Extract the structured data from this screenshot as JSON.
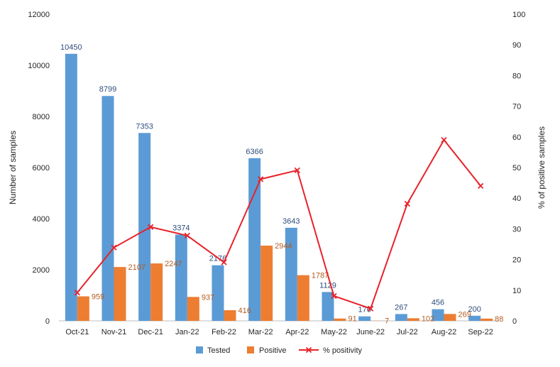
{
  "chart_data": {
    "type": "bar",
    "categories": [
      "Oct-21",
      "Nov-21",
      "Dec-21",
      "Jan-22",
      "Feb-22",
      "Mar-22",
      "Apr-22",
      "May-22",
      "June-22",
      "Jul-22",
      "Aug-22",
      "Sep-22"
    ],
    "series": [
      {
        "name": "Tested",
        "type": "bar",
        "axis": "left",
        "color": "#5b9bd5",
        "values": [
          10450,
          8799,
          7353,
          3374,
          2176,
          6366,
          3643,
          1129,
          176,
          267,
          456,
          200
        ],
        "labels": [
          "10450",
          "8799",
          "7353",
          "3374",
          "2176",
          "6366",
          "3643",
          "1129",
          "176",
          "267",
          "456",
          "200"
        ]
      },
      {
        "name": "Positive",
        "type": "bar",
        "axis": "left",
        "color": "#ed7d31",
        "values": [
          959,
          2107,
          2247,
          937,
          416,
          2944,
          1787,
          91,
          7,
          102,
          269,
          88
        ],
        "labels": [
          "959",
          "2107",
          "2247",
          "937",
          "416",
          "2944",
          "1787",
          "91",
          "7",
          "102",
          "269",
          "88"
        ]
      },
      {
        "name": "% positivity",
        "type": "line",
        "axis": "right",
        "color": "#e8222a",
        "marker": "x",
        "values": [
          9.2,
          23.9,
          30.6,
          27.8,
          19.1,
          46.2,
          49.1,
          8.1,
          4.0,
          38.2,
          59.0,
          44.0
        ]
      }
    ],
    "ylabel": "Number of samples",
    "y2label": "% of positive samples",
    "ylim": [
      0,
      12000
    ],
    "y2lim": [
      0,
      100
    ],
    "yticks": [
      "0",
      "2000",
      "4000",
      "6000",
      "8000",
      "10000",
      "12000"
    ],
    "y2ticks": [
      "0",
      "10",
      "20",
      "30",
      "40",
      "50",
      "60",
      "70",
      "80",
      "90",
      "100"
    ],
    "grid": false,
    "legend_position": "bottom"
  }
}
